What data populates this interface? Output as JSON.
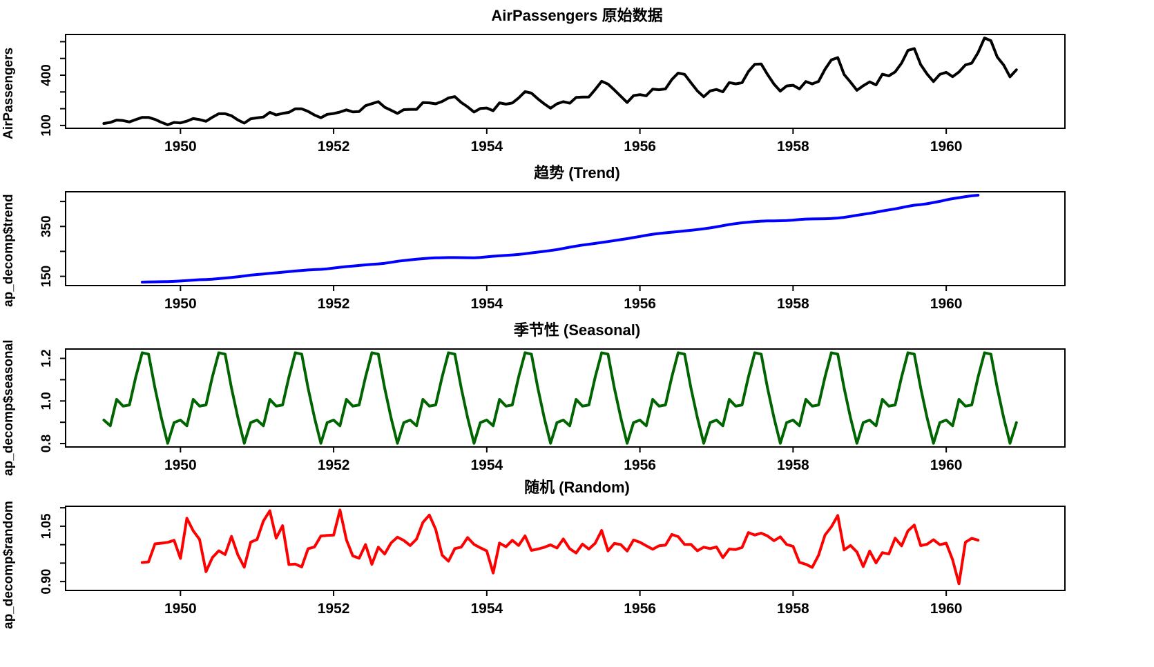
{
  "figure": {
    "background": "#ffffff",
    "axis_color": "#000000"
  },
  "x_axis": {
    "xlim": [
      1948.5,
      1961.55
    ],
    "ticks": [
      1950,
      1952,
      1954,
      1956,
      1958,
      1960
    ],
    "tick_labels": [
      "1950",
      "1952",
      "1954",
      "1956",
      "1958",
      "1960"
    ],
    "start": 1949,
    "frequency": 12
  },
  "chart_data": [
    {
      "type": "line",
      "title": "AirPassengers 原始数据",
      "ylabel": "AirPassengers",
      "color": "#000000",
      "ylim": [
        83,
        643
      ],
      "yticks": [
        {
          "v": 100,
          "t": "100"
        },
        {
          "v": 200,
          "t": ""
        },
        {
          "v": 300,
          "t": ""
        },
        {
          "v": 400,
          "t": "400"
        },
        {
          "v": 500,
          "t": ""
        },
        {
          "v": 600,
          "t": ""
        }
      ],
      "values": [
        112,
        118,
        132,
        129,
        121,
        135,
        148,
        148,
        136,
        119,
        104,
        118,
        115,
        126,
        141,
        135,
        125,
        149,
        170,
        170,
        158,
        133,
        114,
        140,
        145,
        150,
        178,
        163,
        172,
        178,
        199,
        199,
        184,
        162,
        146,
        166,
        171,
        180,
        193,
        181,
        183,
        218,
        230,
        242,
        209,
        191,
        172,
        194,
        196,
        196,
        236,
        235,
        229,
        243,
        264,
        272,
        237,
        211,
        180,
        201,
        204,
        188,
        235,
        227,
        234,
        264,
        302,
        293,
        259,
        229,
        203,
        229,
        242,
        233,
        267,
        269,
        270,
        315,
        364,
        347,
        312,
        274,
        237,
        278,
        284,
        277,
        317,
        313,
        318,
        374,
        413,
        405,
        355,
        306,
        271,
        306,
        315,
        301,
        356,
        348,
        355,
        422,
        465,
        467,
        404,
        347,
        305,
        336,
        340,
        318,
        362,
        348,
        363,
        435,
        491,
        505,
        404,
        359,
        310,
        337,
        360,
        342,
        406,
        396,
        420,
        472,
        548,
        559,
        463,
        407,
        362,
        405,
        417,
        391,
        419,
        461,
        472,
        535,
        622,
        606,
        508,
        461,
        390,
        432
      ]
    },
    {
      "type": "line",
      "title": "趋势 (Trend)",
      "ylabel": "ap_decomp$trend",
      "color": "#0000ff",
      "ylim": [
        113,
        489
      ],
      "yticks": [
        {
          "v": 150,
          "t": "150"
        },
        {
          "v": 250,
          "t": ""
        },
        {
          "v": 350,
          "t": "350"
        },
        {
          "v": 450,
          "t": ""
        }
      ],
      "values": [
        null,
        null,
        null,
        null,
        null,
        null,
        126.79,
        127.25,
        127.96,
        128.58,
        129.0,
        129.75,
        131.25,
        133.08,
        134.92,
        136.42,
        137.42,
        138.75,
        140.92,
        143.17,
        145.71,
        148.42,
        151.54,
        154.71,
        157.13,
        159.54,
        161.83,
        164.13,
        166.67,
        169.08,
        171.25,
        173.58,
        175.46,
        176.83,
        178.04,
        180.17,
        183.13,
        186.21,
        189.04,
        191.29,
        193.58,
        195.83,
        198.04,
        199.75,
        202.21,
        206.25,
        210.42,
        213.38,
        215.83,
        218.5,
        220.92,
        222.92,
        224.08,
        224.71,
        225.33,
        225.33,
        224.96,
        224.58,
        224.46,
        225.54,
        228.0,
        230.46,
        232.25,
        233.92,
        235.63,
        237.75,
        240.5,
        243.96,
        247.17,
        250.25,
        253.5,
        257.13,
        261.83,
        266.67,
        271.13,
        275.21,
        278.5,
        281.96,
        285.75,
        289.33,
        293.25,
        297.17,
        301.0,
        305.46,
        309.96,
        314.42,
        318.63,
        321.75,
        324.5,
        327.08,
        329.54,
        331.83,
        334.46,
        337.54,
        340.54,
        344.08,
        348.25,
        353.0,
        357.63,
        361.38,
        364.5,
        367.17,
        369.46,
        371.21,
        372.17,
        372.42,
        372.75,
        373.63,
        375.25,
        377.92,
        379.5,
        380.0,
        380.71,
        380.96,
        381.83,
        383.67,
        386.5,
        390.33,
        394.71,
        398.63,
        402.54,
        407.17,
        411.88,
        416.33,
        420.5,
        425.5,
        430.71,
        435.13,
        437.71,
        440.96,
        445.83,
        450.63,
        456.33,
        461.38,
        465.21,
        469.33,
        472.75,
        475.04,
        null,
        null,
        null,
        null,
        null,
        null
      ]
    },
    {
      "type": "line",
      "title": "季节性 (Seasonal)",
      "ylabel": "ap_decomp$seasonal",
      "color": "#006400",
      "ylim": [
        0.784,
        1.244
      ],
      "yticks": [
        {
          "v": 0.8,
          "t": "0.8"
        },
        {
          "v": 0.9,
          "t": ""
        },
        {
          "v": 1.0,
          "t": "1.0"
        },
        {
          "v": 1.1,
          "t": ""
        },
        {
          "v": 1.2,
          "t": "1.2"
        }
      ],
      "seasonal_factors": [
        0.9102,
        0.8836,
        1.0074,
        0.9759,
        0.9814,
        1.1128,
        1.2266,
        1.2199,
        1.0605,
        0.9218,
        0.8012,
        0.8988
      ],
      "n_points": 144
    },
    {
      "type": "line",
      "title": "随机 (Random)",
      "ylabel": "ap_decomp$random",
      "color": "#ff0000",
      "ylim": [
        0.876,
        1.104
      ],
      "yticks": [
        {
          "v": 0.9,
          "t": "0.90"
        },
        {
          "v": 0.95,
          "t": ""
        },
        {
          "v": 1.0,
          "t": ""
        },
        {
          "v": 1.05,
          "t": "1.05"
        },
        {
          "v": 1.1,
          "t": ""
        }
      ],
      "derived": "observed / (trend * seasonal)"
    }
  ]
}
